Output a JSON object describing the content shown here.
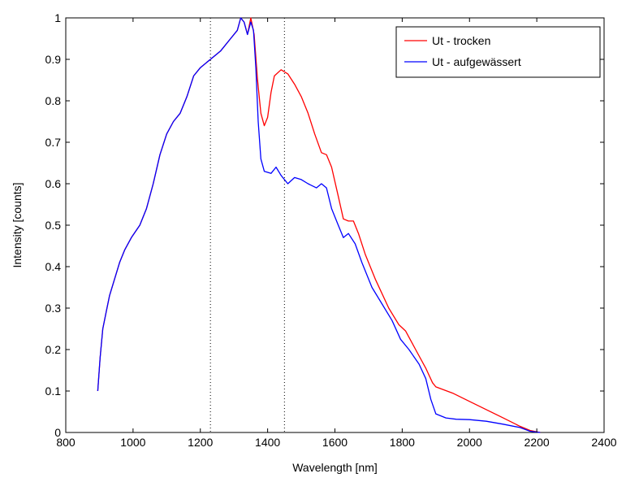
{
  "chart_data": {
    "type": "line",
    "title": "",
    "xlabel": "Wavelength [nm]",
    "ylabel": "Intensity [counts]",
    "xlim": [
      800,
      2400
    ],
    "ylim": [
      0,
      1
    ],
    "x_ticks": [
      800,
      1000,
      1200,
      1400,
      1600,
      1800,
      2000,
      2200,
      2400
    ],
    "y_ticks": [
      0,
      0.1,
      0.2,
      0.3,
      0.4,
      0.5,
      0.6,
      0.7,
      0.8,
      0.9,
      1
    ],
    "grid": false,
    "legend_position": "top-right",
    "reference_lines_x": [
      1230,
      1450
    ],
    "series": [
      {
        "name": "Ut - trocken",
        "color": "#ff0000",
        "points": [
          [
            895,
            0.1
          ],
          [
            902,
            0.18
          ],
          [
            910,
            0.25
          ],
          [
            920,
            0.29
          ],
          [
            930,
            0.33
          ],
          [
            945,
            0.37
          ],
          [
            960,
            0.41
          ],
          [
            975,
            0.44
          ],
          [
            995,
            0.47
          ],
          [
            1020,
            0.5
          ],
          [
            1040,
            0.54
          ],
          [
            1060,
            0.6
          ],
          [
            1080,
            0.67
          ],
          [
            1100,
            0.72
          ],
          [
            1120,
            0.75
          ],
          [
            1140,
            0.77
          ],
          [
            1160,
            0.81
          ],
          [
            1180,
            0.86
          ],
          [
            1200,
            0.88
          ],
          [
            1230,
            0.9
          ],
          [
            1260,
            0.92
          ],
          [
            1290,
            0.95
          ],
          [
            1310,
            0.97
          ],
          [
            1320,
            1.0
          ],
          [
            1330,
            0.99
          ],
          [
            1340,
            0.96
          ],
          [
            1350,
            1.0
          ],
          [
            1360,
            0.96
          ],
          [
            1370,
            0.85
          ],
          [
            1380,
            0.77
          ],
          [
            1390,
            0.74
          ],
          [
            1400,
            0.76
          ],
          [
            1410,
            0.82
          ],
          [
            1420,
            0.86
          ],
          [
            1440,
            0.875
          ],
          [
            1460,
            0.865
          ],
          [
            1480,
            0.84
          ],
          [
            1500,
            0.81
          ],
          [
            1520,
            0.77
          ],
          [
            1540,
            0.72
          ],
          [
            1560,
            0.675
          ],
          [
            1575,
            0.67
          ],
          [
            1590,
            0.64
          ],
          [
            1610,
            0.57
          ],
          [
            1625,
            0.515
          ],
          [
            1640,
            0.51
          ],
          [
            1655,
            0.51
          ],
          [
            1670,
            0.48
          ],
          [
            1690,
            0.43
          ],
          [
            1720,
            0.37
          ],
          [
            1760,
            0.3
          ],
          [
            1790,
            0.26
          ],
          [
            1810,
            0.245
          ],
          [
            1840,
            0.2
          ],
          [
            1870,
            0.155
          ],
          [
            1890,
            0.12
          ],
          [
            1900,
            0.11
          ],
          [
            1950,
            0.095
          ],
          [
            2000,
            0.075
          ],
          [
            2050,
            0.055
          ],
          [
            2100,
            0.035
          ],
          [
            2150,
            0.015
          ],
          [
            2180,
            0.005
          ],
          [
            2210,
            0.0
          ]
        ]
      },
      {
        "name": "Ut - aufgewässert",
        "color": "#0000ff",
        "points": [
          [
            895,
            0.1
          ],
          [
            902,
            0.18
          ],
          [
            910,
            0.25
          ],
          [
            920,
            0.29
          ],
          [
            930,
            0.33
          ],
          [
            945,
            0.37
          ],
          [
            960,
            0.41
          ],
          [
            975,
            0.44
          ],
          [
            995,
            0.47
          ],
          [
            1020,
            0.5
          ],
          [
            1040,
            0.54
          ],
          [
            1060,
            0.6
          ],
          [
            1080,
            0.67
          ],
          [
            1100,
            0.72
          ],
          [
            1120,
            0.75
          ],
          [
            1140,
            0.77
          ],
          [
            1160,
            0.81
          ],
          [
            1180,
            0.86
          ],
          [
            1200,
            0.88
          ],
          [
            1230,
            0.9
          ],
          [
            1260,
            0.92
          ],
          [
            1290,
            0.95
          ],
          [
            1310,
            0.97
          ],
          [
            1320,
            1.0
          ],
          [
            1330,
            0.99
          ],
          [
            1340,
            0.96
          ],
          [
            1350,
            0.99
          ],
          [
            1358,
            0.97
          ],
          [
            1365,
            0.88
          ],
          [
            1372,
            0.75
          ],
          [
            1380,
            0.66
          ],
          [
            1390,
            0.63
          ],
          [
            1410,
            0.625
          ],
          [
            1425,
            0.64
          ],
          [
            1440,
            0.62
          ],
          [
            1460,
            0.6
          ],
          [
            1480,
            0.615
          ],
          [
            1500,
            0.61
          ],
          [
            1520,
            0.6
          ],
          [
            1545,
            0.59
          ],
          [
            1560,
            0.6
          ],
          [
            1575,
            0.59
          ],
          [
            1590,
            0.54
          ],
          [
            1610,
            0.5
          ],
          [
            1625,
            0.47
          ],
          [
            1640,
            0.48
          ],
          [
            1660,
            0.455
          ],
          [
            1680,
            0.41
          ],
          [
            1710,
            0.35
          ],
          [
            1740,
            0.31
          ],
          [
            1770,
            0.27
          ],
          [
            1795,
            0.225
          ],
          [
            1820,
            0.2
          ],
          [
            1850,
            0.165
          ],
          [
            1870,
            0.13
          ],
          [
            1885,
            0.08
          ],
          [
            1900,
            0.045
          ],
          [
            1930,
            0.035
          ],
          [
            1960,
            0.032
          ],
          [
            2000,
            0.031
          ],
          [
            2050,
            0.027
          ],
          [
            2100,
            0.02
          ],
          [
            2150,
            0.012
          ],
          [
            2180,
            0.003
          ],
          [
            2210,
            0.0
          ]
        ]
      }
    ]
  }
}
